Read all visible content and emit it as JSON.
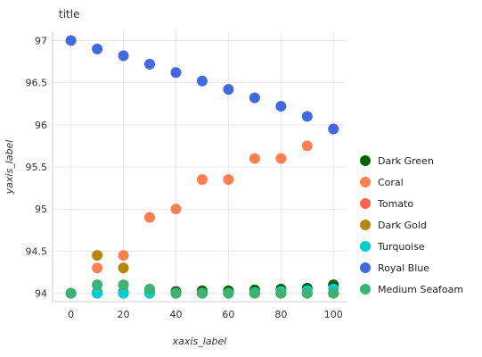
{
  "chart_data": {
    "type": "scatter",
    "title": "title",
    "xlabel": "xaxis_label",
    "ylabel": "yaxis_label",
    "xlim": [
      -7,
      105
    ],
    "ylim": [
      93.9,
      97.1
    ],
    "x_ticks": [
      0,
      20,
      40,
      60,
      80,
      100
    ],
    "y_ticks": [
      94,
      94.5,
      95,
      95.5,
      96,
      96.5,
      97
    ],
    "grid": true,
    "legend_position": "right",
    "series": [
      {
        "name": "Dark Green",
        "color": "#006400",
        "x": [
          0,
          10,
          20,
          30,
          40,
          50,
          60,
          70,
          80,
          90,
          100
        ],
        "y": [
          94.0,
          94.01,
          94.01,
          94.02,
          94.02,
          94.03,
          94.03,
          94.04,
          94.05,
          94.06,
          94.1
        ]
      },
      {
        "name": "Coral",
        "color": "#FF7F50",
        "x": [
          0,
          10,
          20,
          30,
          40,
          50,
          60,
          70,
          80,
          90,
          100
        ],
        "y": [
          94.0,
          94.3,
          94.45,
          94.9,
          95.0,
          95.35,
          95.35,
          95.6,
          95.6,
          95.75,
          95.95
        ]
      },
      {
        "name": "Tomato",
        "color": "#FF6347",
        "x": [
          0,
          10,
          20,
          30,
          40,
          50,
          60,
          70,
          80,
          90,
          100
        ],
        "y": [
          94.0,
          94.0,
          94.0,
          94.0,
          94.0,
          94.0,
          94.0,
          94.0,
          94.0,
          94.0,
          94.0
        ]
      },
      {
        "name": "Dark Gold",
        "color": "#B8860B",
        "x": [
          0,
          10,
          20,
          30,
          40,
          50,
          60,
          70,
          80,
          90,
          100
        ],
        "y": [
          94.0,
          94.45,
          94.3,
          94.0,
          94.0,
          94.0,
          94.0,
          94.0,
          94.0,
          94.0,
          94.0
        ]
      },
      {
        "name": "Turquoise",
        "color": "#00CED1",
        "x": [
          0,
          10,
          20,
          30,
          40,
          50,
          60,
          70,
          80,
          90,
          100
        ],
        "y": [
          94.0,
          94.0,
          94.0,
          94.0,
          94.0,
          94.0,
          94.0,
          94.01,
          94.02,
          94.03,
          94.05
        ]
      },
      {
        "name": "Royal Blue",
        "color": "#4169E1",
        "x": [
          0,
          10,
          20,
          30,
          40,
          50,
          60,
          70,
          80,
          90,
          100
        ],
        "y": [
          97.0,
          96.9,
          96.82,
          96.72,
          96.62,
          96.52,
          96.42,
          96.32,
          96.22,
          96.1,
          95.95
        ]
      },
      {
        "name": "Medium Seafoam",
        "color": "#3CB371",
        "x": [
          0,
          10,
          20,
          30,
          40,
          50,
          60,
          70,
          80,
          90,
          100
        ],
        "y": [
          94.0,
          94.1,
          94.1,
          94.05,
          94.0,
          94.0,
          94.0,
          94.0,
          94.0,
          94.0,
          94.0
        ]
      }
    ]
  }
}
